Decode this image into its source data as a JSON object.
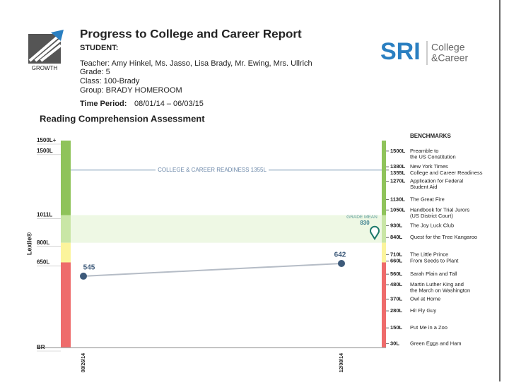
{
  "header": {
    "title": "Progress to College and Career Report",
    "student": "STUDENT:",
    "teacher": "Teacher: Amy Hinkel, Ms. Jasso, Lisa Brady, Mr. Ewing, Mrs. Ullrich",
    "grade": "Grade: 5",
    "class": "Class: 100-Brady",
    "group": "Group: BRADY HOMEROOM",
    "time_label": "Time Period:",
    "time_value": "08/01/14 – 06/03/15",
    "logo_text": "GROWTH",
    "sri": "SRI",
    "sri_line1": "College",
    "sri_line2": "&Career"
  },
  "chart_data": {
    "type": "line",
    "title": "Reading Comprehension Assessment",
    "ylabel": "Lexile®",
    "x": [
      "08/26/14",
      "12/08/14"
    ],
    "series": [
      {
        "name": "Student",
        "color": "#3d5a7a",
        "values": [
          545,
          642
        ]
      }
    ],
    "ylim": [
      0,
      1580
    ],
    "yticks": [
      {
        "value": 0,
        "label": "BR"
      },
      {
        "value": 650,
        "label": "650L"
      },
      {
        "value": 800,
        "label": "800L"
      },
      {
        "value": 1011,
        "label": "1011L"
      },
      {
        "value": 1500,
        "label": "1500L"
      },
      {
        "value": 1580,
        "label": "1500L+"
      }
    ],
    "bands": [
      {
        "min": 1011,
        "max": 1580,
        "color": "#8fc35a"
      },
      {
        "min": 800,
        "max": 1011,
        "color": "#c9e6a6"
      },
      {
        "min": 650,
        "max": 800,
        "color": "#fbf49c"
      },
      {
        "min": 0,
        "max": 650,
        "color": "#ee6b6b"
      }
    ],
    "readiness": {
      "label": "COLLEGE & CAREER READINESS 1355L",
      "value": 1355
    },
    "grade_mean": {
      "label": "GRADE MEAN",
      "value": 830
    },
    "benchmarks_title": "BENCHMARKS",
    "benchmarks": [
      {
        "value": 1500,
        "label": "1500L",
        "title": [
          "Preamble to",
          "the US Constitution"
        ]
      },
      {
        "value": 1380,
        "label": "1380L",
        "title": [
          "New York Times"
        ]
      },
      {
        "value": 1355,
        "label": "1355L",
        "title": [
          "College and Career Readiness"
        ]
      },
      {
        "value": 1270,
        "label": "1270L",
        "title": [
          "Application for Federal",
          "Student Aid"
        ]
      },
      {
        "value": 1130,
        "label": "1130L",
        "title": [
          "The Great Fire"
        ]
      },
      {
        "value": 1050,
        "label": "1050L",
        "title": [
          "Handbook for Trial Jurors",
          "(US District Court)"
        ]
      },
      {
        "value": 930,
        "label": "930L",
        "title": [
          "The Joy Luck Club"
        ]
      },
      {
        "value": 840,
        "label": "840L",
        "title": [
          "Quest for the Tree Kangaroo"
        ]
      },
      {
        "value": 710,
        "label": "710L",
        "title": [
          "The Little Prince"
        ]
      },
      {
        "value": 660,
        "label": "660L",
        "title": [
          "From Seeds to Plant"
        ]
      },
      {
        "value": 560,
        "label": "560L",
        "title": [
          "Sarah Plain and Tall"
        ]
      },
      {
        "value": 480,
        "label": "480L",
        "title": [
          "Martin Luther King and",
          "the March on Washington"
        ]
      },
      {
        "value": 370,
        "label": "370L",
        "title": [
          "Owl at Home"
        ]
      },
      {
        "value": 280,
        "label": "280L",
        "title": [
          "Hi! Fly Guy"
        ]
      },
      {
        "value": 150,
        "label": "150L",
        "title": [
          "Put Me in a Zoo"
        ]
      },
      {
        "value": 30,
        "label": "30L",
        "title": [
          "Green Eggs and Ham"
        ]
      }
    ]
  }
}
